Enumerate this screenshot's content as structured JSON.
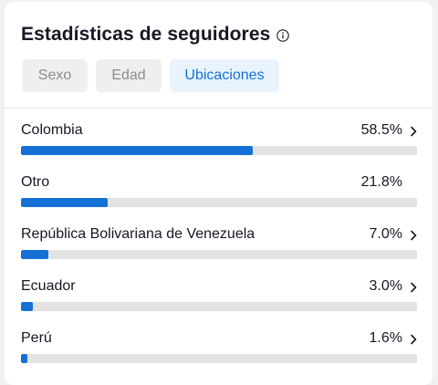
{
  "header": {
    "title": "Estadísticas de seguidores",
    "info_icon": "info-circle-icon"
  },
  "tabs": [
    {
      "label": "Sexo",
      "active": false
    },
    {
      "label": "Edad",
      "active": false
    },
    {
      "label": "Ubicaciones",
      "active": true
    }
  ],
  "locations": [
    {
      "name": "Colombia",
      "percent_label": "58.5%",
      "value": 58.5,
      "has_chevron": true
    },
    {
      "name": "Otro",
      "percent_label": "21.8%",
      "value": 21.8,
      "has_chevron": false
    },
    {
      "name": "República Bolivariana de Venezuela",
      "percent_label": "7.0%",
      "value": 7.0,
      "has_chevron": true
    },
    {
      "name": "Ecuador",
      "percent_label": "3.0%",
      "value": 3.0,
      "has_chevron": true
    },
    {
      "name": "Perú",
      "percent_label": "1.6%",
      "value": 1.6,
      "has_chevron": true
    }
  ],
  "colors": {
    "accent": "#1570d5",
    "track": "#e3e3e4",
    "active_tab_bg": "#e8f3fd",
    "active_tab_text": "#1672d6",
    "inactive_tab_bg": "#efefef",
    "inactive_tab_text": "#8a8b91",
    "text": "#161823"
  }
}
